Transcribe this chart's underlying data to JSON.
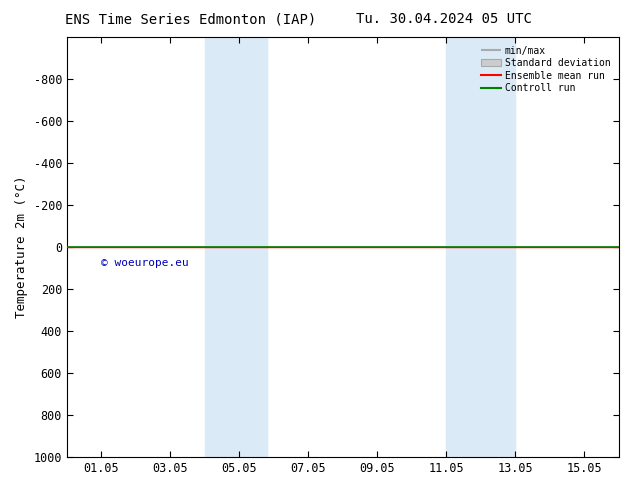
{
  "title_left": "ENS Time Series Edmonton (IAP)",
  "title_right": "Tu. 30.04.2024 05 UTC",
  "ylabel": "Temperature 2m (°C)",
  "ylim": [
    -1000,
    1000
  ],
  "yticks": [
    -800,
    -600,
    -400,
    -200,
    0,
    200,
    400,
    600,
    800,
    1000
  ],
  "xtick_labels": [
    "01.05",
    "03.05",
    "05.05",
    "07.05",
    "09.05",
    "11.05",
    "13.05",
    "15.05"
  ],
  "xtick_positions": [
    1,
    3,
    5,
    7,
    9,
    11,
    13,
    15
  ],
  "xlim": [
    0,
    16
  ],
  "shaded_bands": [
    {
      "x_start": 4.0,
      "x_end": 5.8,
      "color": "#daeaf6"
    },
    {
      "x_start": 11.0,
      "x_end": 13.0,
      "color": "#daeaf6"
    }
  ],
  "green_line_y": 0,
  "red_line_y": 0,
  "green_line_color": "#008000",
  "red_line_color": "#ff0000",
  "watermark": "© woeurope.eu",
  "watermark_color": "#0000bb",
  "legend_labels": [
    "min/max",
    "Standard deviation",
    "Ensemble mean run",
    "Controll run"
  ],
  "bg_color": "#ffffff",
  "plot_bg_color": "#ffffff",
  "border_color": "#000000",
  "title_fontsize": 10,
  "axis_fontsize": 9,
  "tick_fontsize": 8.5
}
